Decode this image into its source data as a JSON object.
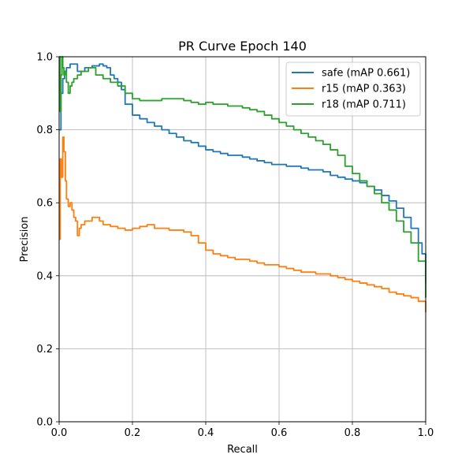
{
  "chart_data": {
    "type": "line",
    "title": "PR Curve Epoch 140",
    "xlabel": "Recall",
    "ylabel": "Precision",
    "xlim": [
      0,
      1
    ],
    "ylim": [
      0,
      1
    ],
    "xticks": [
      "0.0",
      "0.2",
      "0.4",
      "0.6",
      "0.8",
      "1.0"
    ],
    "yticks": [
      "0.0",
      "0.2",
      "0.4",
      "0.6",
      "0.8",
      "1.0"
    ],
    "grid": true,
    "legend_position": "top-right",
    "series": [
      {
        "name": "safe (mAP 0.661)",
        "color": "#1f77b4",
        "x": [
          0.0,
          0.005,
          0.01,
          0.015,
          0.02,
          0.03,
          0.04,
          0.05,
          0.07,
          0.09,
          0.11,
          0.12,
          0.13,
          0.14,
          0.15,
          0.16,
          0.17,
          0.18,
          0.2,
          0.22,
          0.24,
          0.26,
          0.28,
          0.3,
          0.32,
          0.34,
          0.36,
          0.38,
          0.4,
          0.42,
          0.44,
          0.46,
          0.48,
          0.5,
          0.52,
          0.54,
          0.56,
          0.58,
          0.6,
          0.62,
          0.64,
          0.66,
          0.68,
          0.7,
          0.72,
          0.74,
          0.76,
          0.78,
          0.8,
          0.82,
          0.84,
          0.86,
          0.88,
          0.9,
          0.92,
          0.94,
          0.96,
          0.98,
          0.99,
          1.0
        ],
        "y": [
          0.8,
          0.9,
          0.94,
          0.96,
          0.97,
          0.98,
          0.98,
          0.96,
          0.97,
          0.975,
          0.98,
          0.975,
          0.97,
          0.95,
          0.94,
          0.93,
          0.91,
          0.87,
          0.84,
          0.83,
          0.82,
          0.81,
          0.8,
          0.79,
          0.78,
          0.77,
          0.765,
          0.755,
          0.745,
          0.74,
          0.735,
          0.73,
          0.73,
          0.725,
          0.72,
          0.715,
          0.71,
          0.705,
          0.705,
          0.7,
          0.7,
          0.695,
          0.69,
          0.69,
          0.685,
          0.675,
          0.67,
          0.665,
          0.66,
          0.655,
          0.645,
          0.635,
          0.62,
          0.605,
          0.585,
          0.56,
          0.53,
          0.49,
          0.46,
          0.38
        ]
      },
      {
        "name": "r15 (mAP 0.363)",
        "color": "#ff7f0e",
        "x": [
          0.0,
          0.003,
          0.006,
          0.01,
          0.013,
          0.017,
          0.02,
          0.025,
          0.03,
          0.035,
          0.04,
          0.045,
          0.05,
          0.055,
          0.06,
          0.07,
          0.08,
          0.09,
          0.1,
          0.11,
          0.12,
          0.14,
          0.16,
          0.18,
          0.2,
          0.22,
          0.24,
          0.26,
          0.28,
          0.3,
          0.32,
          0.34,
          0.36,
          0.38,
          0.4,
          0.42,
          0.44,
          0.46,
          0.48,
          0.5,
          0.52,
          0.54,
          0.56,
          0.58,
          0.6,
          0.62,
          0.64,
          0.66,
          0.68,
          0.7,
          0.72,
          0.74,
          0.76,
          0.78,
          0.8,
          0.82,
          0.84,
          0.86,
          0.88,
          0.9,
          0.92,
          0.94,
          0.96,
          0.98,
          1.0
        ],
        "y": [
          0.5,
          0.72,
          0.67,
          0.78,
          0.74,
          0.66,
          0.61,
          0.59,
          0.6,
          0.58,
          0.56,
          0.55,
          0.51,
          0.53,
          0.54,
          0.55,
          0.55,
          0.56,
          0.56,
          0.55,
          0.54,
          0.535,
          0.53,
          0.525,
          0.53,
          0.535,
          0.54,
          0.53,
          0.53,
          0.525,
          0.525,
          0.52,
          0.51,
          0.49,
          0.47,
          0.46,
          0.455,
          0.45,
          0.445,
          0.445,
          0.44,
          0.435,
          0.43,
          0.43,
          0.425,
          0.42,
          0.415,
          0.41,
          0.41,
          0.405,
          0.405,
          0.4,
          0.395,
          0.39,
          0.385,
          0.38,
          0.375,
          0.37,
          0.365,
          0.355,
          0.35,
          0.345,
          0.34,
          0.33,
          0.3
        ]
      },
      {
        "name": "r18 (mAP 0.711)",
        "color": "#2ca02c",
        "x": [
          0.0,
          0.003,
          0.005,
          0.008,
          0.01,
          0.013,
          0.016,
          0.02,
          0.025,
          0.03,
          0.035,
          0.04,
          0.05,
          0.06,
          0.07,
          0.08,
          0.09,
          0.1,
          0.12,
          0.14,
          0.16,
          0.18,
          0.2,
          0.22,
          0.24,
          0.26,
          0.28,
          0.3,
          0.32,
          0.34,
          0.36,
          0.38,
          0.4,
          0.42,
          0.44,
          0.46,
          0.48,
          0.5,
          0.52,
          0.54,
          0.56,
          0.58,
          0.6,
          0.62,
          0.64,
          0.66,
          0.68,
          0.7,
          0.72,
          0.74,
          0.76,
          0.78,
          0.8,
          0.82,
          0.84,
          0.86,
          0.88,
          0.9,
          0.92,
          0.94,
          0.96,
          0.98,
          1.0
        ],
        "y": [
          1.0,
          0.85,
          0.95,
          1.0,
          0.97,
          0.95,
          0.96,
          0.93,
          0.9,
          0.92,
          0.93,
          0.94,
          0.95,
          0.96,
          0.96,
          0.97,
          0.97,
          0.95,
          0.94,
          0.93,
          0.92,
          0.9,
          0.885,
          0.88,
          0.88,
          0.88,
          0.885,
          0.885,
          0.885,
          0.88,
          0.875,
          0.87,
          0.875,
          0.87,
          0.87,
          0.865,
          0.865,
          0.86,
          0.855,
          0.85,
          0.84,
          0.83,
          0.82,
          0.81,
          0.8,
          0.79,
          0.78,
          0.77,
          0.76,
          0.745,
          0.73,
          0.7,
          0.68,
          0.66,
          0.645,
          0.625,
          0.6,
          0.58,
          0.55,
          0.52,
          0.49,
          0.44,
          0.34
        ]
      }
    ]
  }
}
